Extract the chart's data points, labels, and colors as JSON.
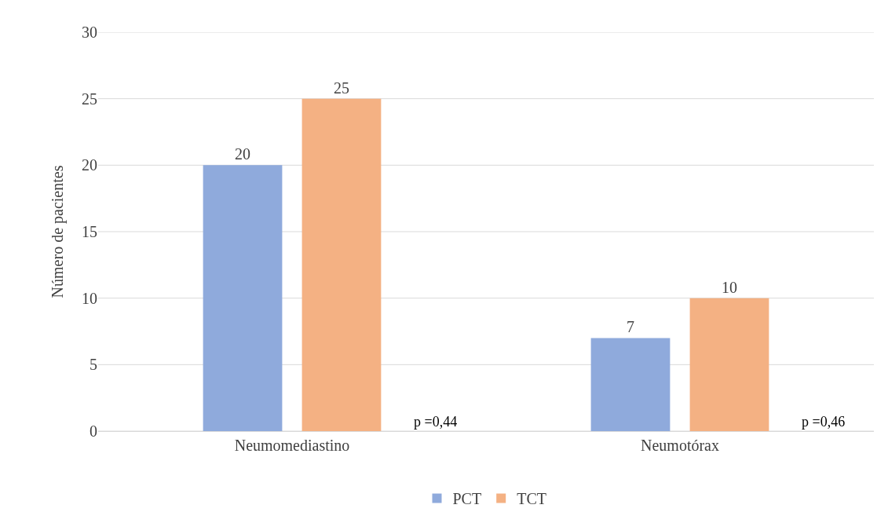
{
  "chart_data": {
    "type": "bar",
    "ylabel": "Número de pacientes",
    "categories": [
      "Neumomediastino",
      "Neumotórax"
    ],
    "series": [
      {
        "name": "PCT",
        "color": "#8faadc",
        "values": [
          20,
          7
        ]
      },
      {
        "name": "TCT",
        "color": "#f4b183",
        "values": [
          25,
          10
        ]
      }
    ],
    "ylim": [
      0,
      30
    ],
    "yticks": [
      0,
      5,
      10,
      15,
      20,
      25,
      30
    ],
    "grid": "y",
    "legend": "bottom",
    "data_labels": true,
    "annotations": [
      "p =0,44",
      "p =0,46"
    ]
  }
}
